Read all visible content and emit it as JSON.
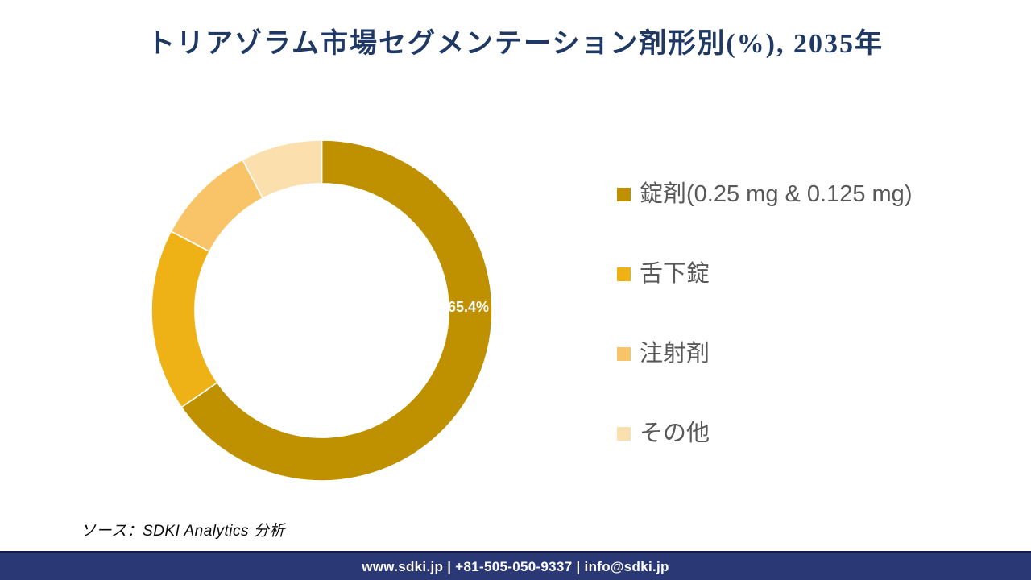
{
  "title": "トリアゾラム市場セグメンテーション剤形別(%), 2035年",
  "source": {
    "text": "ソース：SDKI Analytics  分析"
  },
  "footer": {
    "text": "www.sdki.jp | +81-505-050-9337 | info@sdki.jp",
    "bg": "#2B3876"
  },
  "colors": {
    "title_text": "#1F3864",
    "legend_text": "#595959",
    "data_label_text": "#FFFFFF",
    "footer_bg": "#2B3876"
  },
  "chart_data": {
    "type": "pie",
    "subtype": "donut",
    "title": "トリアゾラム市場セグメンテーション剤形別(%), 2035年",
    "categories": [
      "錠剤(0.25 mg & 0.125 mg)",
      "舌下錠",
      "注射剤",
      "その他"
    ],
    "values": [
      65.4,
      17.3,
      9.6,
      7.7
    ],
    "colors": [
      "#BF9000",
      "#EFB216",
      "#F9C468",
      "#FBDFAD"
    ],
    "labels": [
      "65.4%",
      "",
      "",
      ""
    ],
    "start_angle_deg": 0,
    "direction": "clockwise",
    "inner_radius_ratio": 0.745,
    "legend_position": "right",
    "unit": "%"
  }
}
